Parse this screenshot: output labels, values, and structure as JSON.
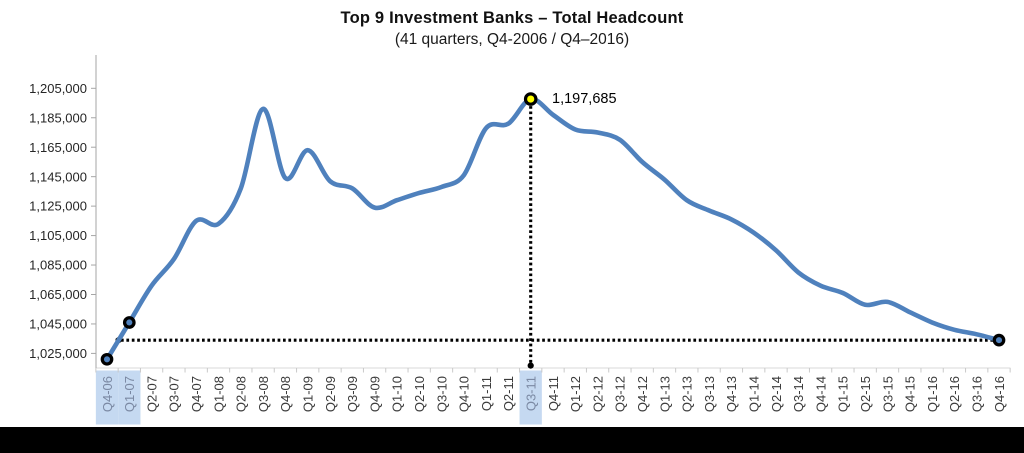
{
  "page": {
    "background": "#ffffff",
    "letterbox_color": "#000000"
  },
  "chart_data": {
    "type": "line",
    "title": "Top 9 Investment Banks – Total Headcount",
    "subtitle": "(41 quarters, Q4-2006 / Q4–2016)",
    "categories": [
      "Q4-06",
      "Q1-07",
      "Q2-07",
      "Q3-07",
      "Q4-07",
      "Q1-08",
      "Q2-08",
      "Q3-08",
      "Q4-08",
      "Q1-09",
      "Q2-09",
      "Q3-09",
      "Q4-09",
      "Q1-10",
      "Q2-10",
      "Q3-10",
      "Q4-10",
      "Q1-11",
      "Q2-11",
      "Q3-11",
      "Q4-11",
      "Q1-12",
      "Q2-12",
      "Q3-12",
      "Q4-12",
      "Q1-13",
      "Q2-13",
      "Q3-13",
      "Q4-13",
      "Q1-14",
      "Q2-14",
      "Q3-14",
      "Q4-14",
      "Q1-15",
      "Q2-15",
      "Q3-15",
      "Q4-15",
      "Q1-16",
      "Q2-16",
      "Q3-16",
      "Q4-16"
    ],
    "series": [
      {
        "name": "Total headcount",
        "color": "#4f81bd",
        "values": [
          1021000,
          1046000,
          1071000,
          1089000,
          1115000,
          1113000,
          1137000,
          1191000,
          1144000,
          1163000,
          1142000,
          1137000,
          1124000,
          1129000,
          1134000,
          1138000,
          1146000,
          1178000,
          1181000,
          1197685,
          1187000,
          1177000,
          1175000,
          1170000,
          1155000,
          1143000,
          1129000,
          1122000,
          1116000,
          1107000,
          1095000,
          1080000,
          1071000,
          1066000,
          1058000,
          1060000,
          1053000,
          1046000,
          1041000,
          1038000,
          1034000
        ]
      }
    ],
    "xlabel": "",
    "ylabel": "",
    "y_ticks": [
      1205000,
      1185000,
      1165000,
      1145000,
      1125000,
      1105000,
      1085000,
      1065000,
      1045000,
      1025000
    ],
    "ylim": [
      1015000,
      1227000
    ],
    "grid": false,
    "legend": "none",
    "line_smoothing": true,
    "peak_annotation": {
      "category": "Q3-11",
      "value": 1197685,
      "label": "1,197,685"
    },
    "endpoint_marker_categories": [
      "Q4-06",
      "Q1-07",
      "Q4-16"
    ],
    "highlighted_categories": [
      "Q4-06",
      "Q1-07",
      "Q3-11"
    ],
    "reference_line": {
      "style": "dotted-horizontal",
      "value": 1034000,
      "note": "level of final Q4-16 value"
    },
    "peak_dropline": {
      "style": "dotted-vertical",
      "category": "Q3-11"
    },
    "colors": {
      "line": "#4f81bd",
      "peak_marker_fill": "#ffff00",
      "marker_stroke": "#000000",
      "marker_fill": "#4f81bd",
      "highlight_bg": "#c5d9f1",
      "dotted_line": "#000000",
      "axis": "#a6a6a6",
      "axis_minor": "#c9c9c9",
      "tick_label": "#262626",
      "highlight_label": "#7b89a3"
    }
  }
}
